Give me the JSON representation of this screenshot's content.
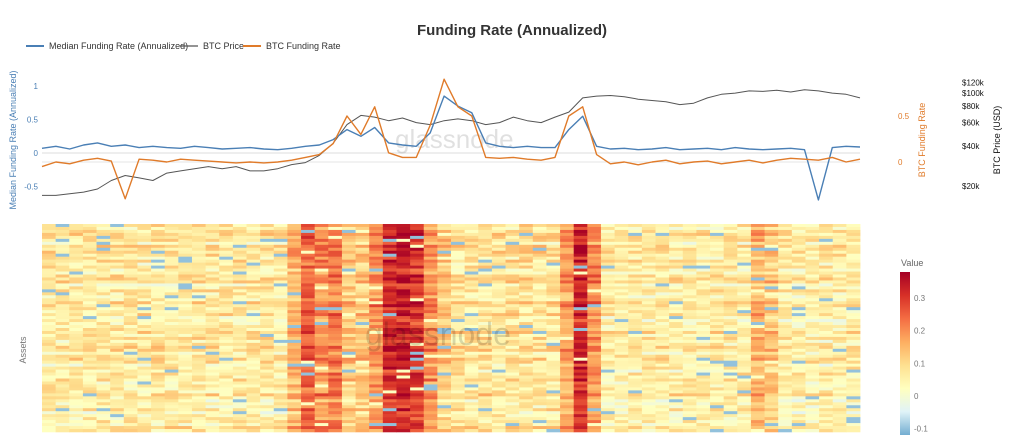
{
  "chart_data": [
    {
      "type": "line",
      "title": "Funding Rate (Annualized)",
      "legend": {
        "placement": "top-left",
        "entries": [
          "Median Funding Rate (Annualized)",
          "BTC Price",
          "BTC Funding Rate"
        ]
      },
      "watermark": "glassnode",
      "axes": {
        "y_left": {
          "label": "Median Funding Rate (Annualized)",
          "ticks": [
            "1",
            "0.5",
            "0",
            "-0.5"
          ],
          "tick_values": [
            1,
            0.5,
            0,
            -0.5
          ],
          "range": [
            -0.72,
            1.12
          ],
          "color": "#4a7fb5"
        },
        "y_right_funding": {
          "label": "BTC Funding Rate",
          "ticks": [
            "0.5",
            "0"
          ],
          "tick_values": [
            0.5,
            0
          ],
          "range": [
            -0.42,
            0.92
          ],
          "color": "#e07b2a"
        },
        "y_right_price": {
          "label": "BTC Price (USD)",
          "scale": "log",
          "ticks": [
            "$120k",
            "$100k",
            "$80k",
            "$60k",
            "$40k",
            "$20k"
          ],
          "tick_values": [
            120,
            100,
            80,
            60,
            40,
            20
          ],
          "unit": "k USD"
        },
        "x": {
          "ticks": []
        }
      },
      "series": [
        {
          "name": "Median Funding Rate (Annualized)",
          "axis": "y_left",
          "color": "#4a7fb5",
          "values": [
            0.07,
            0.1,
            0.06,
            0.12,
            0.15,
            0.1,
            0.12,
            0.08,
            0.1,
            0.08,
            0.07,
            0.1,
            0.08,
            0.06,
            0.07,
            0.08,
            0.06,
            0.05,
            0.07,
            0.1,
            0.12,
            0.2,
            0.35,
            0.25,
            0.38,
            0.15,
            0.12,
            0.1,
            0.3,
            0.85,
            0.7,
            0.6,
            0.15,
            0.1,
            0.08,
            0.1,
            0.08,
            0.08,
            0.35,
            0.55,
            0.1,
            0.06,
            0.07,
            0.05,
            0.06,
            0.08,
            0.05,
            0.06,
            0.07,
            0.05,
            0.08,
            0.06,
            0.05,
            0.06,
            0.07,
            0.05,
            -0.7,
            0.08,
            0.1,
            0.09
          ]
        },
        {
          "name": "BTC Price",
          "axis": "y_right_price",
          "color": "#555555",
          "values": [
            17,
            17,
            17.5,
            18,
            19,
            22,
            24,
            23,
            22,
            25,
            26,
            27,
            28,
            27,
            28,
            26,
            26,
            27,
            29,
            30,
            34,
            42,
            58,
            68,
            66,
            62,
            65,
            60,
            58,
            62,
            64,
            62,
            58,
            60,
            66,
            62,
            60,
            66,
            72,
            92,
            95,
            96,
            94,
            90,
            88,
            86,
            82,
            84,
            92,
            98,
            100,
            104,
            103,
            105,
            102,
            106,
            104,
            100,
            98,
            92
          ]
        },
        {
          "name": "BTC Funding Rate",
          "axis": "y_right_funding",
          "color": "#e07b2a",
          "values": [
            -0.05,
            0.0,
            -0.02,
            0.02,
            0.04,
            0.01,
            -0.4,
            0.03,
            0.02,
            0.0,
            0.03,
            0.02,
            0.01,
            0.0,
            -0.01,
            0.0,
            -0.01,
            0.0,
            0.02,
            0.05,
            0.08,
            0.2,
            0.5,
            0.3,
            0.6,
            0.1,
            0.05,
            0.05,
            0.4,
            0.9,
            0.6,
            0.5,
            0.05,
            0.04,
            0.05,
            0.03,
            0.02,
            0.05,
            0.5,
            0.6,
            0.08,
            -0.02,
            0.0,
            -0.03,
            0.0,
            0.02,
            -0.02,
            0.0,
            0.01,
            -0.02,
            0.0,
            0.02,
            -0.01,
            0.02,
            0.04,
            0.03,
            0.02,
            0.05,
            0.0,
            0.03
          ]
        }
      ]
    },
    {
      "type": "heatmap",
      "ylabel": "Assets",
      "watermark": "glassnode",
      "colorbar": {
        "title": "Value",
        "ticks": [
          "0.3",
          "0.2",
          "0.1",
          "0",
          "-0.1"
        ],
        "tick_values": [
          0.3,
          0.2,
          0.1,
          0,
          -0.1
        ],
        "range": [
          -0.12,
          0.38
        ],
        "colorscale": [
          "#74add1",
          "#e0f3f8",
          "#ffffbf",
          "#fee090",
          "#fdae61",
          "#f46d43",
          "#d73027",
          "#a50026"
        ]
      },
      "column_mean_values": [
        0.07,
        0.07,
        0.07,
        0.07,
        0.07,
        0.07,
        0.07,
        0.07,
        0.07,
        0.07,
        0.07,
        0.07,
        0.07,
        0.07,
        0.07,
        0.07,
        0.07,
        0.07,
        0.15,
        0.25,
        0.2,
        0.22,
        0.12,
        0.12,
        0.2,
        0.32,
        0.33,
        0.3,
        0.2,
        0.12,
        0.08,
        0.08,
        0.08,
        0.08,
        0.08,
        0.08,
        0.08,
        0.08,
        0.18,
        0.32,
        0.2,
        0.06,
        0.06,
        0.06,
        0.06,
        0.06,
        0.06,
        0.06,
        0.06,
        0.06,
        0.06,
        0.06,
        0.15,
        0.12,
        0.06,
        0.06,
        0.06,
        0.06,
        0.06,
        0.06
      ]
    }
  ]
}
